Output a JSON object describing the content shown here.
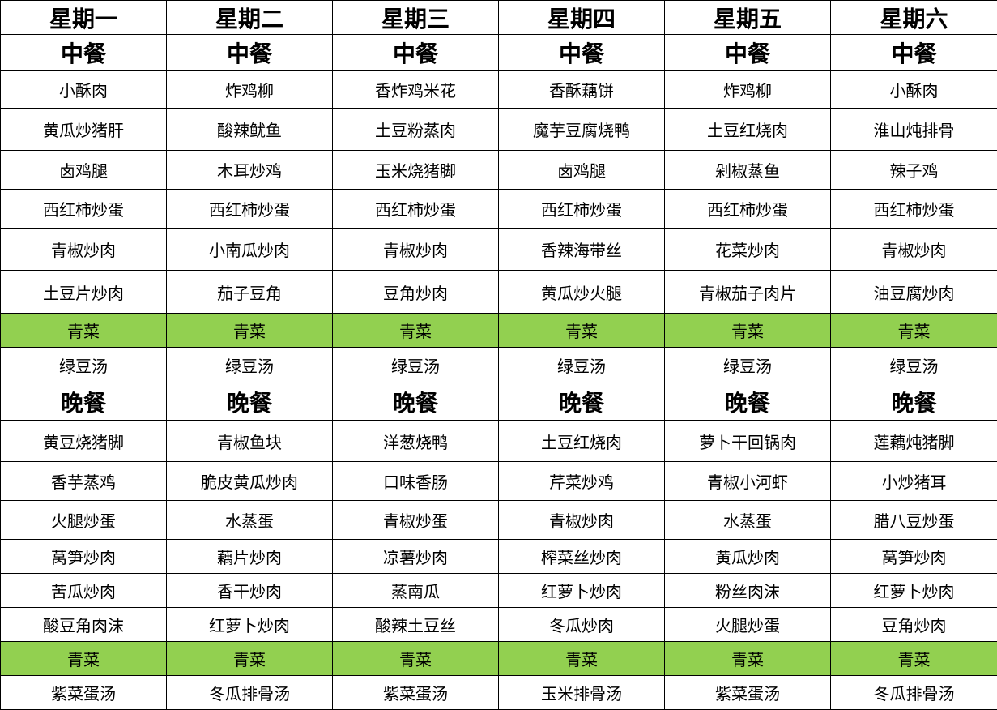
{
  "colors": {
    "vegetable_row": "#92D050",
    "border": "#000000"
  },
  "days": [
    "星期一",
    "星期二",
    "星期三",
    "星期四",
    "星期五",
    "星期六"
  ],
  "lunch": {
    "label": "中餐",
    "dishes": [
      [
        "小酥肉",
        "炸鸡柳",
        "香炸鸡米花",
        "香酥藕饼",
        "炸鸡柳",
        "小酥肉"
      ],
      [
        "黄瓜炒猪肝",
        "酸辣鱿鱼",
        "土豆粉蒸肉",
        "魔芋豆腐烧鸭",
        "土豆红烧肉",
        "淮山炖排骨"
      ],
      [
        "卤鸡腿",
        "木耳炒鸡",
        "玉米烧猪脚",
        "卤鸡腿",
        "剁椒蒸鱼",
        "辣子鸡"
      ],
      [
        "西红柿炒蛋",
        "西红柿炒蛋",
        "西红柿炒蛋",
        "西红柿炒蛋",
        "西红柿炒蛋",
        "西红柿炒蛋"
      ],
      [
        "青椒炒肉",
        "小南瓜炒肉",
        "青椒炒肉",
        "香辣海带丝",
        "花菜炒肉",
        "青椒炒肉"
      ],
      [
        "土豆片炒肉",
        "茄子豆角",
        "豆角炒肉",
        "黄瓜炒火腿",
        "青椒茄子肉片",
        "油豆腐炒肉"
      ]
    ],
    "vegetable": "青菜",
    "soup": [
      "绿豆汤",
      "绿豆汤",
      "绿豆汤",
      "绿豆汤",
      "绿豆汤",
      "绿豆汤"
    ]
  },
  "dinner": {
    "label": "晚餐",
    "dishes": [
      [
        "黄豆烧猪脚",
        "青椒鱼块",
        "洋葱烧鸭",
        "土豆红烧肉",
        "萝卜干回锅肉",
        "莲藕炖猪脚"
      ],
      [
        "香芋蒸鸡",
        "脆皮黄瓜炒肉",
        "口味香肠",
        "芹菜炒鸡",
        "青椒小河虾",
        "小炒猪耳"
      ],
      [
        "火腿炒蛋",
        "水蒸蛋",
        "青椒炒蛋",
        "青椒炒肉",
        "水蒸蛋",
        "腊八豆炒蛋"
      ],
      [
        "莴笋炒肉",
        "藕片炒肉",
        "凉薯炒肉",
        "榨菜丝炒肉",
        "黄瓜炒肉",
        "莴笋炒肉"
      ],
      [
        "苦瓜炒肉",
        "香干炒肉",
        "蒸南瓜",
        "红萝卜炒肉",
        "粉丝肉沫",
        "红萝卜炒肉"
      ],
      [
        "酸豆角肉沫",
        "红萝卜炒肉",
        "酸辣土豆丝",
        "冬瓜炒肉",
        "火腿炒蛋",
        "豆角炒肉"
      ]
    ],
    "vegetable": "青菜",
    "soup": [
      "紫菜蛋汤",
      "冬瓜排骨汤",
      "紫菜蛋汤",
      "玉米排骨汤",
      "紫菜蛋汤",
      "冬瓜排骨汤"
    ]
  }
}
